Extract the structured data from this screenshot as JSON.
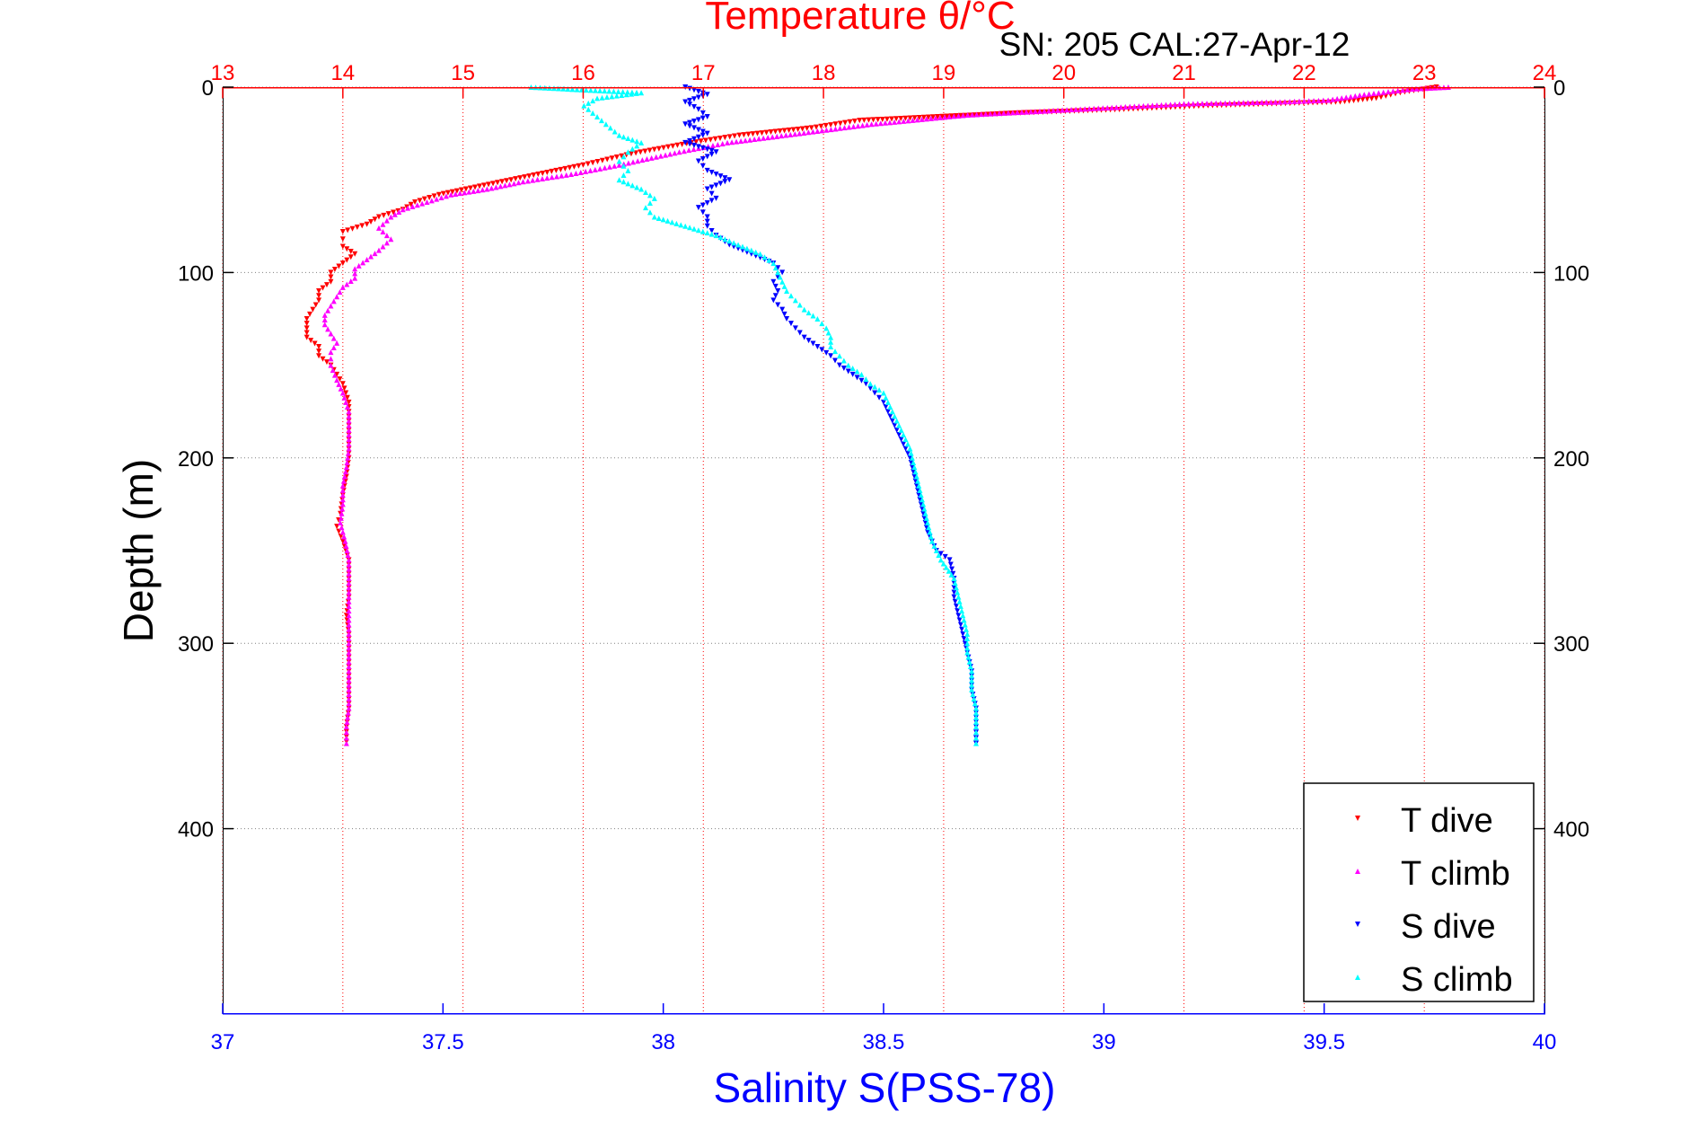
{
  "header": {
    "title": "Temperature θ/°C",
    "subtitle": "SN: 205  CAL:27-Apr-12"
  },
  "colors": {
    "temperature_axis": "#ff0000",
    "salinity_axis": "#0000ff",
    "depth_axis": "#000000",
    "depth_grid": "#808080",
    "t_dive": "#ff0000",
    "t_climb": "#ff00ff",
    "s_dive": "#0000ff",
    "s_climb": "#00ffff"
  },
  "chart_data": {
    "type": "scatter",
    "title": "Temperature θ/°C",
    "subtitle": "SN: 205  CAL:27-Apr-12",
    "xlabel": "Salinity S(PSS-78)",
    "x2label": "Temperature θ/°C",
    "ylabel": "Depth (m)",
    "xlim": [
      37,
      40
    ],
    "x2lim": [
      13,
      24
    ],
    "ylim": [
      500,
      0
    ],
    "y_inverted": true,
    "xticks": [
      "37",
      "37.5",
      "38",
      "38.5",
      "39",
      "39.5",
      "40"
    ],
    "x2ticks": [
      "13",
      "14",
      "15",
      "16",
      "17",
      "18",
      "19",
      "20",
      "21",
      "22",
      "23",
      "24"
    ],
    "yticks": [
      "0",
      "100",
      "200",
      "300",
      "400"
    ],
    "grid": true,
    "legend": {
      "placement": "bottom-right",
      "entries": [
        "T dive",
        "T climb",
        "S dive",
        "S climb"
      ]
    },
    "series": [
      {
        "name": "T dive",
        "axis": "temperature",
        "marker": "triangle-down",
        "points": [
          [
            23.1,
            0
          ],
          [
            22.8,
            3
          ],
          [
            22.6,
            6
          ],
          [
            22.3,
            8
          ],
          [
            21.2,
            10
          ],
          [
            20.5,
            12
          ],
          [
            19.6,
            14
          ],
          [
            18.3,
            18
          ],
          [
            17.9,
            22
          ],
          [
            17.3,
            26
          ],
          [
            16.9,
            30
          ],
          [
            16.4,
            36
          ],
          [
            16.0,
            42
          ],
          [
            15.7,
            46
          ],
          [
            15.4,
            50
          ],
          [
            15.1,
            54
          ],
          [
            14.8,
            58
          ],
          [
            14.6,
            62
          ],
          [
            14.5,
            66
          ],
          [
            14.3,
            70
          ],
          [
            14.2,
            74
          ],
          [
            14.0,
            78
          ],
          [
            14.0,
            82
          ],
          [
            14.0,
            86
          ],
          [
            14.1,
            90
          ],
          [
            14.0,
            95
          ],
          [
            13.9,
            100
          ],
          [
            13.9,
            105
          ],
          [
            13.8,
            110
          ],
          [
            13.8,
            115
          ],
          [
            13.75,
            120
          ],
          [
            13.7,
            125
          ],
          [
            13.7,
            130
          ],
          [
            13.7,
            135
          ],
          [
            13.8,
            140
          ],
          [
            13.8,
            145
          ],
          [
            13.9,
            150
          ],
          [
            13.95,
            155
          ],
          [
            14.0,
            160
          ],
          [
            14.05,
            170
          ],
          [
            14.05,
            180
          ],
          [
            14.05,
            190
          ],
          [
            14.05,
            200
          ],
          [
            14.03,
            210
          ],
          [
            14.0,
            220
          ],
          [
            13.98,
            230
          ],
          [
            13.95,
            237
          ],
          [
            14.0,
            245
          ],
          [
            14.05,
            255
          ],
          [
            14.05,
            265
          ],
          [
            14.05,
            275
          ],
          [
            14.03,
            285
          ],
          [
            14.05,
            295
          ],
          [
            14.05,
            305
          ],
          [
            14.05,
            315
          ],
          [
            14.05,
            325
          ],
          [
            14.05,
            335
          ],
          [
            14.03,
            345
          ],
          [
            14.03,
            353
          ]
        ]
      },
      {
        "name": "T climb",
        "axis": "temperature",
        "marker": "triangle-up",
        "points": [
          [
            23.2,
            0
          ],
          [
            22.9,
            1
          ],
          [
            22.5,
            4
          ],
          [
            22.2,
            7
          ],
          [
            21.8,
            8
          ],
          [
            21.0,
            9
          ],
          [
            20.4,
            11
          ],
          [
            19.8,
            13
          ],
          [
            19.2,
            15
          ],
          [
            18.4,
            20
          ],
          [
            17.8,
            25
          ],
          [
            17.2,
            30
          ],
          [
            16.8,
            35
          ],
          [
            16.3,
            42
          ],
          [
            15.9,
            47
          ],
          [
            15.5,
            51
          ],
          [
            15.2,
            55
          ],
          [
            14.9,
            58
          ],
          [
            14.7,
            62
          ],
          [
            14.5,
            66
          ],
          [
            14.4,
            70
          ],
          [
            14.3,
            76
          ],
          [
            14.4,
            82
          ],
          [
            14.3,
            88
          ],
          [
            14.2,
            93
          ],
          [
            14.1,
            98
          ],
          [
            14.1,
            103
          ],
          [
            14.0,
            108
          ],
          [
            13.95,
            113
          ],
          [
            13.9,
            118
          ],
          [
            13.85,
            123
          ],
          [
            13.85,
            128
          ],
          [
            13.9,
            133
          ],
          [
            13.95,
            138
          ],
          [
            13.9,
            143
          ],
          [
            13.9,
            150
          ],
          [
            13.95,
            158
          ],
          [
            14.0,
            165
          ],
          [
            14.05,
            175
          ],
          [
            14.05,
            185
          ],
          [
            14.05,
            195
          ],
          [
            14.03,
            205
          ],
          [
            14.0,
            215
          ],
          [
            14.0,
            225
          ],
          [
            13.98,
            235
          ],
          [
            14.02,
            245
          ],
          [
            14.05,
            255
          ],
          [
            14.05,
            265
          ],
          [
            14.05,
            275
          ],
          [
            14.05,
            285
          ],
          [
            14.05,
            295
          ],
          [
            14.05,
            305
          ],
          [
            14.05,
            315
          ],
          [
            14.05,
            325
          ],
          [
            14.05,
            335
          ],
          [
            14.03,
            345
          ],
          [
            14.03,
            354
          ]
        ]
      },
      {
        "name": "S dive",
        "axis": "salinity",
        "marker": "triangle-down",
        "points": [
          [
            38.05,
            0
          ],
          [
            38.1,
            4
          ],
          [
            38.05,
            8
          ],
          [
            38.08,
            12
          ],
          [
            38.1,
            16
          ],
          [
            38.05,
            20
          ],
          [
            38.1,
            25
          ],
          [
            38.05,
            30
          ],
          [
            38.12,
            35
          ],
          [
            38.08,
            40
          ],
          [
            38.1,
            45
          ],
          [
            38.15,
            50
          ],
          [
            38.1,
            55
          ],
          [
            38.12,
            60
          ],
          [
            38.08,
            65
          ],
          [
            38.1,
            70
          ],
          [
            38.1,
            75
          ],
          [
            38.12,
            80
          ],
          [
            38.15,
            85
          ],
          [
            38.2,
            90
          ],
          [
            38.25,
            95
          ],
          [
            38.27,
            100
          ],
          [
            38.25,
            105
          ],
          [
            38.26,
            110
          ],
          [
            38.25,
            115
          ],
          [
            38.27,
            120
          ],
          [
            38.28,
            125
          ],
          [
            38.3,
            130
          ],
          [
            38.32,
            135
          ],
          [
            38.35,
            140
          ],
          [
            38.38,
            145
          ],
          [
            38.4,
            150
          ],
          [
            38.43,
            155
          ],
          [
            38.46,
            160
          ],
          [
            38.48,
            165
          ],
          [
            38.5,
            170
          ],
          [
            38.52,
            180
          ],
          [
            38.54,
            190
          ],
          [
            38.56,
            200
          ],
          [
            38.57,
            210
          ],
          [
            38.58,
            220
          ],
          [
            38.59,
            230
          ],
          [
            38.6,
            240
          ],
          [
            38.62,
            250
          ],
          [
            38.65,
            255
          ],
          [
            38.66,
            265
          ],
          [
            38.66,
            275
          ],
          [
            38.67,
            285
          ],
          [
            38.68,
            295
          ],
          [
            38.69,
            305
          ],
          [
            38.7,
            315
          ],
          [
            38.7,
            325
          ],
          [
            38.71,
            335
          ],
          [
            38.71,
            345
          ],
          [
            38.71,
            354
          ]
        ]
      },
      {
        "name": "S climb",
        "axis": "salinity",
        "marker": "triangle-up",
        "points": [
          [
            37.7,
            0
          ],
          [
            37.95,
            3
          ],
          [
            37.85,
            6
          ],
          [
            37.82,
            10
          ],
          [
            37.84,
            14
          ],
          [
            37.86,
            18
          ],
          [
            37.88,
            22
          ],
          [
            37.9,
            26
          ],
          [
            37.95,
            30
          ],
          [
            37.92,
            35
          ],
          [
            37.9,
            40
          ],
          [
            37.92,
            45
          ],
          [
            37.9,
            50
          ],
          [
            37.95,
            55
          ],
          [
            37.98,
            60
          ],
          [
            37.96,
            65
          ],
          [
            37.98,
            70
          ],
          [
            38.05,
            75
          ],
          [
            38.12,
            80
          ],
          [
            38.17,
            85
          ],
          [
            38.22,
            90
          ],
          [
            38.25,
            95
          ],
          [
            38.26,
            100
          ],
          [
            38.27,
            105
          ],
          [
            38.28,
            110
          ],
          [
            38.3,
            115
          ],
          [
            38.32,
            120
          ],
          [
            38.35,
            125
          ],
          [
            38.37,
            130
          ],
          [
            38.38,
            135
          ],
          [
            38.38,
            140
          ],
          [
            38.4,
            145
          ],
          [
            38.42,
            150
          ],
          [
            38.45,
            155
          ],
          [
            38.47,
            160
          ],
          [
            38.5,
            165
          ],
          [
            38.52,
            175
          ],
          [
            38.54,
            185
          ],
          [
            38.56,
            195
          ],
          [
            38.57,
            205
          ],
          [
            38.58,
            215
          ],
          [
            38.59,
            225
          ],
          [
            38.6,
            235
          ],
          [
            38.61,
            245
          ],
          [
            38.63,
            255
          ],
          [
            38.66,
            265
          ],
          [
            38.67,
            275
          ],
          [
            38.68,
            285
          ],
          [
            38.69,
            295
          ],
          [
            38.69,
            305
          ],
          [
            38.7,
            315
          ],
          [
            38.7,
            325
          ],
          [
            38.71,
            335
          ],
          [
            38.71,
            345
          ],
          [
            38.71,
            354
          ]
        ]
      }
    ]
  }
}
